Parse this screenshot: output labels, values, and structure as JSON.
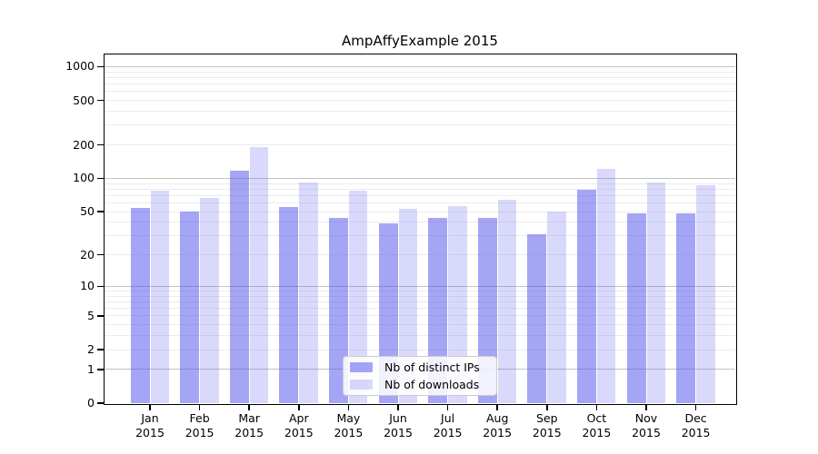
{
  "chart_data": {
    "type": "bar",
    "title": "AmpAffyExample 2015",
    "year_label": "2015",
    "categories": [
      "Jan",
      "Feb",
      "Mar",
      "Apr",
      "May",
      "Jun",
      "Jul",
      "Aug",
      "Sep",
      "Oct",
      "Nov",
      "Dec"
    ],
    "series": [
      {
        "name": "Nb of distinct IPs",
        "values": [
          54,
          50,
          117,
          55,
          44,
          39,
          44,
          44,
          31,
          79,
          48,
          48
        ],
        "color": "rgba(82,82,237,0.52)"
      },
      {
        "name": "Nb of downloads",
        "values": [
          78,
          67,
          190,
          91,
          77,
          53,
          56,
          64,
          50,
          122,
          91,
          86
        ],
        "color": "rgba(82,82,237,0.22)"
      }
    ],
    "xlabel": "",
    "ylabel": "",
    "yscale": "log10(value+1)",
    "yticks": [
      1000,
      500,
      200,
      100,
      50,
      20,
      10,
      5,
      2,
      1,
      0
    ],
    "ylim": [
      0,
      1285
    ],
    "grid": {
      "enabled": true,
      "major_at": [
        1,
        10,
        100,
        1000
      ],
      "major_color": "#c3c3c3",
      "minor_color": "#ececec"
    },
    "legend": {
      "position": "lower-center",
      "background": "rgba(255,255,255,0.85)",
      "border_color": "#cccccc"
    },
    "axis_color": "#000000",
    "background_color": "#ffffff"
  }
}
